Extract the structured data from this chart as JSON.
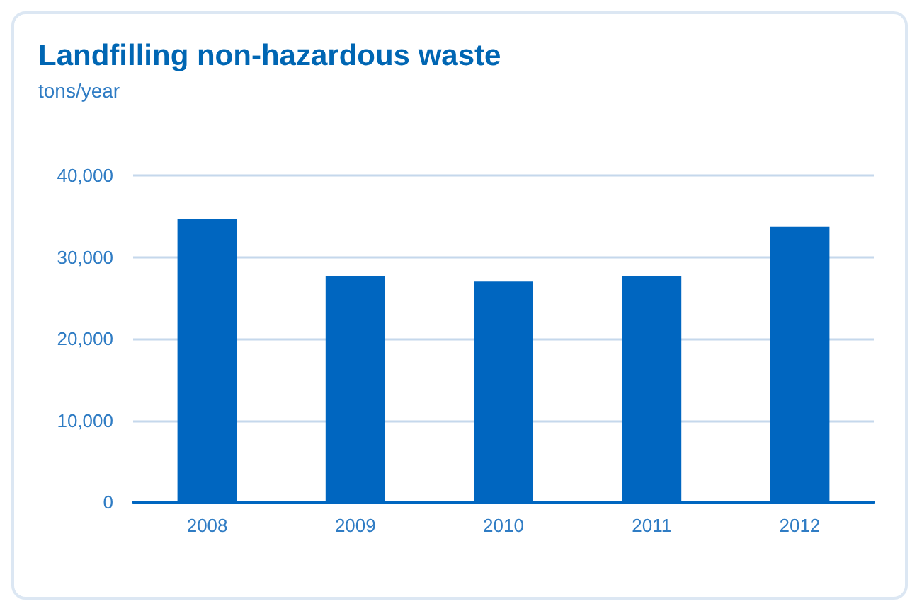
{
  "chart_data": {
    "type": "bar",
    "title": "Landfilling non-hazardous waste",
    "subtitle": "tons/year",
    "categories": [
      "2008",
      "2009",
      "2010",
      "2011",
      "2012"
    ],
    "values": [
      34700,
      27700,
      27000,
      27700,
      33700
    ],
    "color": "#0066c0",
    "ylim": [
      0,
      40000
    ],
    "yticks": [
      {
        "value": 0,
        "label": "0"
      },
      {
        "value": 10000,
        "label": "10,000"
      },
      {
        "value": 20000,
        "label": "20,000"
      },
      {
        "value": 30000,
        "label": "30,000"
      },
      {
        "value": 40000,
        "label": "40,000"
      }
    ],
    "grid": "y"
  }
}
